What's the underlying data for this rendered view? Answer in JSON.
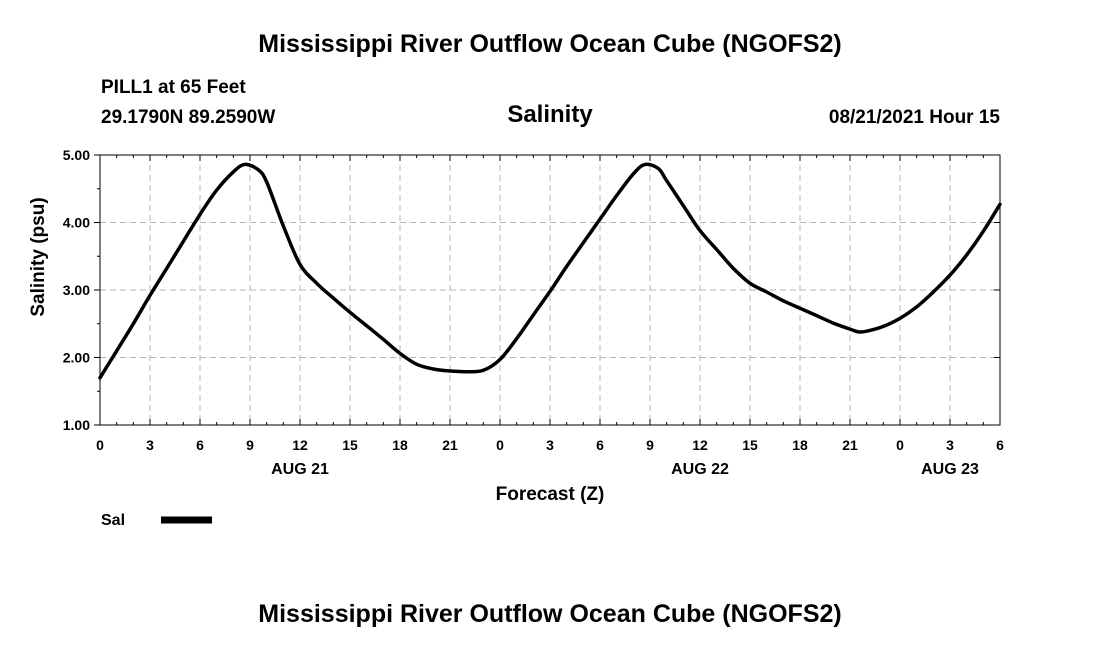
{
  "header": {
    "title": "Mississippi River Outflow Ocean Cube (NGOFS2)",
    "station": "PILL1 at 65 Feet",
    "coords": "29.1790N  89.2590W",
    "datetime": "08/21/2021 Hour 15"
  },
  "footer": {
    "title": "Mississippi River Outflow Ocean Cube (NGOFS2)"
  },
  "legend": {
    "label": "Sal",
    "color": "#000000"
  },
  "chart_data": {
    "type": "line",
    "title": "Salinity",
    "xlabel": "Forecast (Z)",
    "ylabel": "Salinity (psu)",
    "xlim": [
      0,
      54
    ],
    "ylim": [
      1.0,
      5.0
    ],
    "grid": true,
    "legend_position": "bottom-left",
    "x_ticks": [
      0,
      3,
      6,
      9,
      12,
      15,
      18,
      21,
      24,
      27,
      30,
      33,
      36,
      39,
      42,
      45,
      48,
      51,
      54
    ],
    "x_tick_labels": [
      "0",
      "3",
      "6",
      "9",
      "12",
      "15",
      "18",
      "21",
      "0",
      "3",
      "6",
      "9",
      "12",
      "15",
      "18",
      "21",
      "0",
      "3",
      "6"
    ],
    "y_ticks": [
      1.0,
      2.0,
      3.0,
      4.0,
      5.0
    ],
    "y_tick_labels": [
      "1.00",
      "2.00",
      "3.00",
      "4.00",
      "5.00"
    ],
    "date_labels": [
      {
        "x": 12,
        "label": "AUG 21"
      },
      {
        "x": 36,
        "label": "AUG 22"
      },
      {
        "x": 51,
        "label": "AUG 23"
      }
    ],
    "series": [
      {
        "name": "Sal",
        "color": "#000000",
        "x": [
          0,
          1,
          2,
          3,
          4,
          5,
          6,
          7,
          8,
          8.7,
          9.5,
          10,
          11,
          12,
          13,
          14,
          15,
          16,
          17,
          18,
          19,
          20,
          21,
          22,
          23,
          24,
          25,
          26,
          27,
          28,
          29,
          30,
          31,
          32,
          32.7,
          33.5,
          34,
          35,
          36,
          37,
          38,
          39,
          40,
          41,
          42,
          43,
          44,
          45,
          45.5,
          46,
          47,
          48,
          49,
          50,
          51,
          52,
          53,
          54
        ],
        "values": [
          1.7,
          2.1,
          2.5,
          2.92,
          3.32,
          3.72,
          4.12,
          4.48,
          4.75,
          4.86,
          4.78,
          4.6,
          3.95,
          3.38,
          3.1,
          2.88,
          2.67,
          2.47,
          2.27,
          2.06,
          1.9,
          1.83,
          1.8,
          1.79,
          1.81,
          1.97,
          2.28,
          2.63,
          2.98,
          3.35,
          3.7,
          4.05,
          4.4,
          4.72,
          4.86,
          4.8,
          4.62,
          4.25,
          3.88,
          3.6,
          3.32,
          3.1,
          2.97,
          2.84,
          2.73,
          2.62,
          2.51,
          2.42,
          2.38,
          2.39,
          2.46,
          2.58,
          2.75,
          2.97,
          3.22,
          3.52,
          3.87,
          4.27
        ]
      }
    ]
  }
}
